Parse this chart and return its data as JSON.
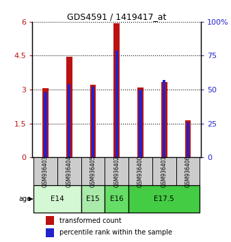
{
  "title": "GDS4591 / 1419417_at",
  "samples": [
    "GSM936403",
    "GSM936404",
    "GSM936405",
    "GSM936402",
    "GSM936400",
    "GSM936401",
    "GSM936406"
  ],
  "red_values": [
    3.05,
    4.45,
    3.2,
    5.95,
    3.1,
    3.35,
    1.65
  ],
  "blue_values": [
    48,
    54,
    52,
    79,
    50,
    57,
    26
  ],
  "age_groups": [
    {
      "label": "E14",
      "span": [
        0,
        2
      ],
      "color": "#d4f7d4"
    },
    {
      "label": "E15",
      "span": [
        2,
        3
      ],
      "color": "#aaeaaa"
    },
    {
      "label": "E16",
      "span": [
        3,
        4
      ],
      "color": "#66dd66"
    },
    {
      "label": "E17.5",
      "span": [
        4,
        7
      ],
      "color": "#44cc44"
    }
  ],
  "left_ylim": [
    0,
    6
  ],
  "right_ylim": [
    0,
    100
  ],
  "left_yticks": [
    0,
    1.5,
    3.0,
    4.5,
    6.0
  ],
  "left_yticklabels": [
    "0",
    "1.5",
    "3",
    "4.5",
    "6"
  ],
  "right_yticks": [
    0,
    25,
    50,
    75,
    100
  ],
  "right_yticklabels": [
    "0",
    "25",
    "50",
    "75",
    "100%"
  ],
  "red_color": "#bb1111",
  "blue_color": "#2222cc",
  "red_bar_width": 0.25,
  "blue_bar_width": 0.12,
  "sample_bg_color": "#cccccc",
  "legend_red_label": "transformed count",
  "legend_blue_label": "percentile rank within the sample"
}
